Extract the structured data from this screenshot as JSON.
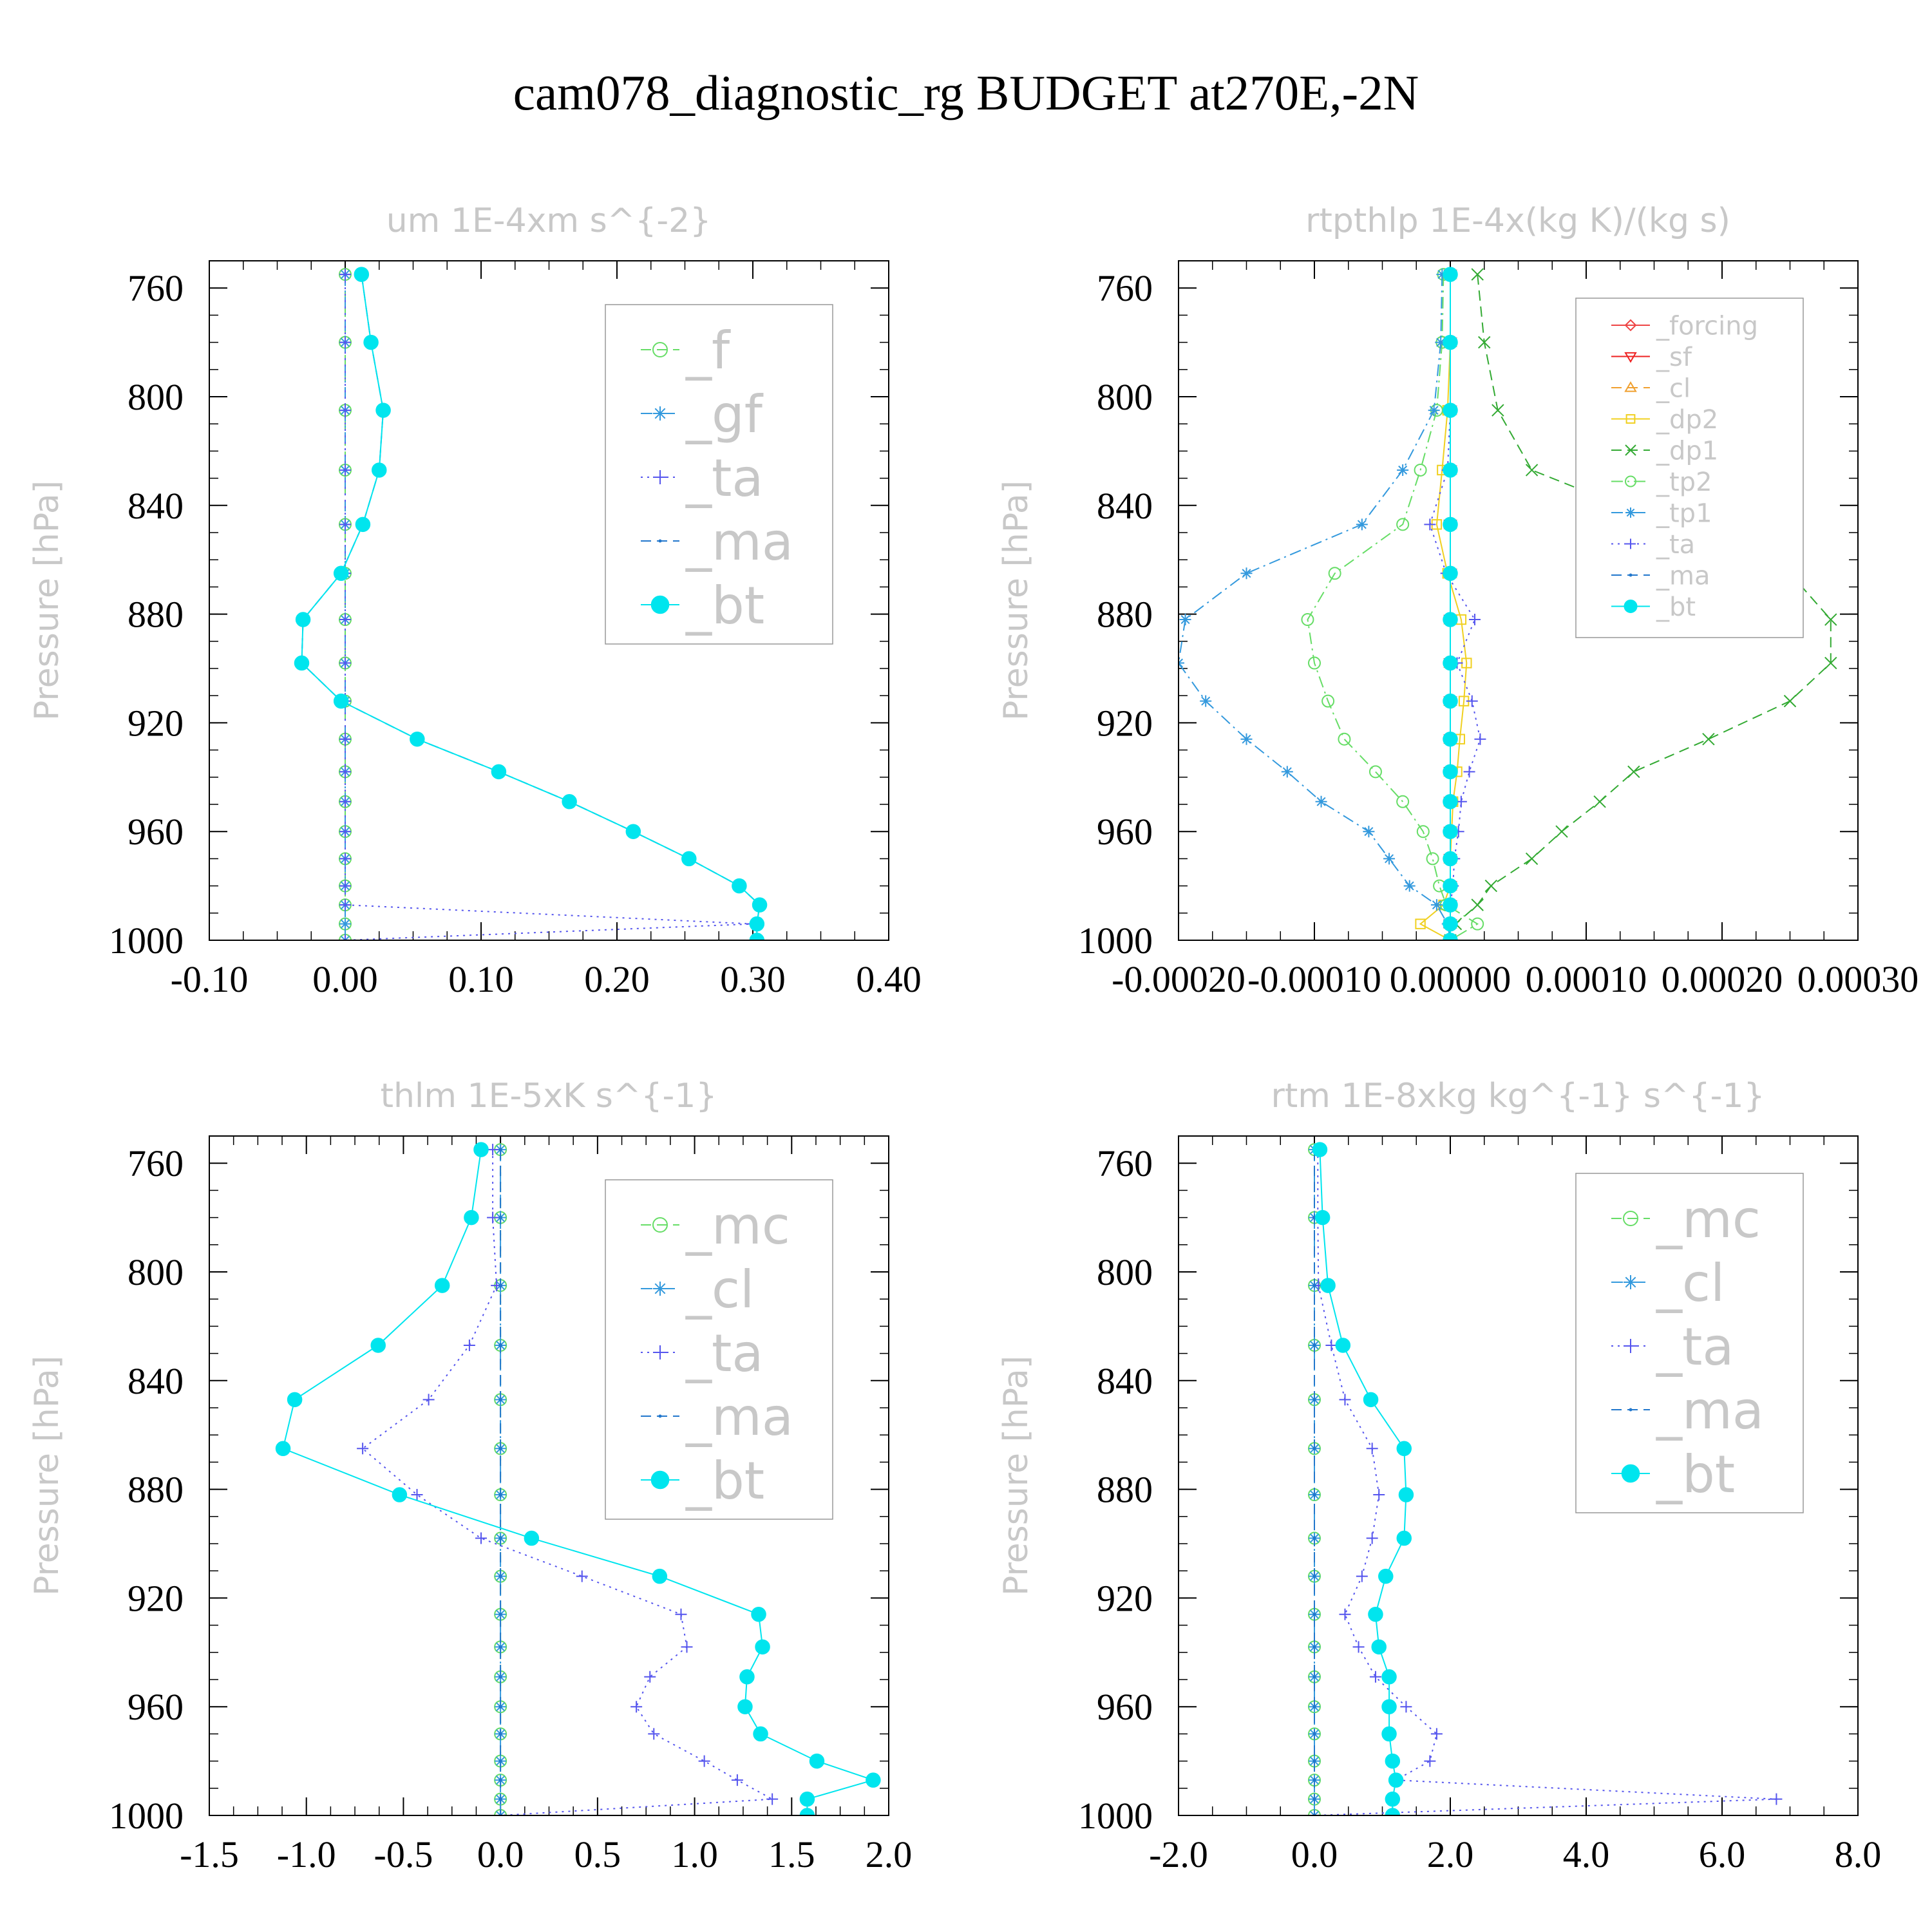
{
  "figure": {
    "title": "cam078_diagnostic_rg  BUDGET at270E,-2N"
  },
  "colors": {
    "f": "#66dd66",
    "gf": "#3399dd",
    "ta": "#5555ee",
    "ma": "#2277cc",
    "bt": "#00e5ee",
    "forcing": "#ee4444",
    "sf": "#ee2222",
    "cl_orange": "#f0a030",
    "dp2": "#f0d020",
    "dp1": "#33aa33",
    "tp2": "#66dd66",
    "tp1": "#3399dd",
    "mc": "#66dd66",
    "cl": "#3399dd"
  },
  "chart_data": [
    {
      "type": "line",
      "title": "um  1E-4xm s^{-2}",
      "ylabel": "Pressure [hPa]",
      "xlim": [
        -0.1,
        0.4
      ],
      "ylim": [
        1000,
        750
      ],
      "grid": false,
      "legend_position": "top-right",
      "x_ticks": [
        -0.1,
        0.0,
        0.1,
        0.2,
        0.3,
        0.4
      ],
      "x_tick_labels": [
        "-0.10",
        "0.00",
        "0.10",
        "0.20",
        "0.30",
        "0.40"
      ],
      "y_ticks": [
        760,
        800,
        840,
        880,
        920,
        960,
        1000
      ],
      "y_tick_labels": [
        "760",
        "800",
        "840",
        "880",
        "920",
        "960",
        "1000"
      ],
      "pressure": [
        755,
        780,
        805,
        827,
        847,
        865,
        882,
        898,
        912,
        926,
        938,
        949,
        960,
        970,
        980,
        987,
        994,
        1000
      ],
      "series": [
        {
          "name": "_f",
          "color_key": "f",
          "style": "dash",
          "marker": "circle-open",
          "values": [
            0,
            0,
            0,
            0,
            0,
            0,
            0,
            0,
            0,
            0,
            0,
            0,
            0,
            0,
            0,
            0,
            0,
            0
          ]
        },
        {
          "name": "_gf",
          "color_key": "gf",
          "style": "dashdot",
          "marker": "star",
          "values": [
            0,
            0,
            0,
            0,
            0,
            0,
            0,
            0,
            0,
            0,
            0,
            0,
            0,
            0,
            0,
            0,
            0,
            0
          ]
        },
        {
          "name": "_ta",
          "color_key": "ta",
          "style": "dot",
          "marker": "plus",
          "values": [
            0,
            0,
            0,
            0,
            0,
            0,
            0,
            0,
            0,
            0,
            0,
            0,
            0,
            0,
            0,
            0,
            0.3,
            0
          ]
        },
        {
          "name": "_ma",
          "color_key": "ma",
          "style": "dash",
          "marker": "dot",
          "values": [
            0.012,
            0.019,
            0.028,
            0.025,
            0.013,
            -0.003,
            -0.031,
            -0.032,
            -0.003,
            0.053,
            0.113,
            0.165,
            0.212,
            0.253,
            0.29,
            0.305,
            0.303,
            0.303
          ]
        },
        {
          "name": "_bt",
          "color_key": "bt",
          "style": "solid",
          "marker": "circle-filled",
          "values": [
            0.012,
            0.019,
            0.028,
            0.025,
            0.013,
            -0.003,
            -0.031,
            -0.032,
            -0.003,
            0.053,
            0.113,
            0.165,
            0.212,
            0.253,
            0.29,
            0.305,
            0.303,
            0.303
          ]
        }
      ]
    },
    {
      "type": "line",
      "title": "rtpthlp  1E-4x(kg K)/(kg s)",
      "ylabel": "Pressure [hPa]",
      "xlim": [
        -0.0002,
        0.0003
      ],
      "ylim": [
        1000,
        750
      ],
      "grid": false,
      "legend_position": "top-right",
      "x_ticks": [
        -0.0002,
        -0.0001,
        0.0,
        0.0001,
        0.0002,
        0.0003
      ],
      "x_tick_labels": [
        "-0.00020",
        "-0.00010",
        "0.00000",
        "0.00010",
        "0.00020",
        "0.00030"
      ],
      "y_ticks": [
        760,
        800,
        840,
        880,
        920,
        960,
        1000
      ],
      "y_tick_labels": [
        "760",
        "800",
        "840",
        "880",
        "920",
        "960",
        "1000"
      ],
      "pressure": [
        755,
        780,
        805,
        827,
        847,
        865,
        882,
        898,
        912,
        926,
        938,
        949,
        960,
        970,
        980,
        987,
        994,
        1000
      ],
      "series": [
        {
          "name": "_forcing",
          "color_key": "forcing",
          "style": "solid",
          "marker": "diamond",
          "values": [
            0,
            0,
            0,
            0,
            0,
            0,
            0,
            0,
            0,
            0,
            0,
            0,
            0,
            0,
            0,
            0,
            0,
            0
          ]
        },
        {
          "name": "_sf",
          "color_key": "sf",
          "style": "solid",
          "marker": "triangle-down",
          "values": [
            0,
            0,
            0,
            0,
            0,
            0,
            0,
            0,
            0,
            0,
            0,
            0,
            0,
            0,
            0,
            0,
            0,
            0
          ]
        },
        {
          "name": "_cl",
          "color_key": "cl_orange",
          "style": "dash",
          "marker": "triangle-up",
          "values": [
            0,
            0,
            0,
            0,
            0,
            0,
            0,
            0,
            0,
            0,
            0,
            0,
            0,
            0,
            0,
            0,
            0,
            0
          ]
        },
        {
          "name": "_dp2",
          "color_key": "dp2",
          "style": "solid",
          "marker": "square",
          "values": [
            0,
            0,
            -2e-06,
            -6e-06,
            -1e-05,
            -2e-06,
            8e-06,
            1.2e-05,
            1e-05,
            7e-06,
            5e-06,
            2e-06,
            1e-06,
            0,
            0,
            -5e-06,
            -2.2e-05,
            0
          ]
        },
        {
          "name": "_dp1",
          "color_key": "dp1",
          "style": "dash",
          "marker": "x",
          "values": [
            2e-05,
            2.5e-05,
            3.5e-05,
            6e-05,
            0.00016,
            0.00025,
            0.00028,
            0.00028,
            0.00025,
            0.00019,
            0.000135,
            0.00011,
            8.2e-05,
            6e-05,
            3e-05,
            2e-05,
            4e-06,
            0
          ]
        },
        {
          "name": "_tp2",
          "color_key": "tp2",
          "style": "dashdot",
          "marker": "circle-open",
          "values": [
            -5e-06,
            -6e-06,
            -1e-05,
            -2.2e-05,
            -3.5e-05,
            -8.5e-05,
            -0.000105,
            -0.0001,
            -9e-05,
            -7.8e-05,
            -5.5e-05,
            -3.5e-05,
            -2e-05,
            -1.3e-05,
            -8e-06,
            -3e-06,
            2e-05,
            0
          ]
        },
        {
          "name": "_tp1",
          "color_key": "tp1",
          "style": "dashdot",
          "marker": "star",
          "values": [
            -6e-06,
            -7e-06,
            -1.2e-05,
            -3.5e-05,
            -6.5e-05,
            -0.00015,
            -0.000195,
            -0.0002,
            -0.00018,
            -0.00015,
            -0.00012,
            -9.5e-05,
            -6e-05,
            -4.5e-05,
            -3e-05,
            -1e-05,
            -2e-06,
            0
          ]
        },
        {
          "name": "_ta",
          "color_key": "ta",
          "style": "dot",
          "marker": "plus",
          "values": [
            0,
            0,
            0,
            -2e-06,
            -1.5e-05,
            -3e-06,
            1.8e-05,
            5e-06,
            1.6e-05,
            2.2e-05,
            1.4e-05,
            8e-06,
            6e-06,
            3e-06,
            2e-06,
            0,
            0,
            0
          ]
        },
        {
          "name": "_ma",
          "color_key": "ma",
          "style": "dash",
          "marker": "dot",
          "values": [
            0,
            0,
            0,
            0,
            0,
            0,
            0,
            0,
            0,
            0,
            0,
            0,
            0,
            0,
            0,
            0,
            0,
            0
          ]
        },
        {
          "name": "_bt",
          "color_key": "bt",
          "style": "solid",
          "marker": "circle-filled",
          "values": [
            0,
            0,
            0,
            0,
            0,
            0,
            0,
            0,
            0,
            0,
            0,
            0,
            0,
            0,
            0,
            0,
            0,
            0
          ]
        }
      ]
    },
    {
      "type": "line",
      "title": "thlm  1E-5xK s^{-1}",
      "ylabel": "Pressure [hPa]",
      "xlim": [
        -1.5,
        2.0
      ],
      "ylim": [
        1000,
        750
      ],
      "grid": false,
      "legend_position": "top-right",
      "x_ticks": [
        -1.5,
        -1.0,
        -0.5,
        0.0,
        0.5,
        1.0,
        1.5,
        2.0
      ],
      "x_tick_labels": [
        "-1.5",
        "-1.0",
        "-0.5",
        "0.0",
        "0.5",
        "1.0",
        "1.5",
        "2.0"
      ],
      "y_ticks": [
        760,
        800,
        840,
        880,
        920,
        960,
        1000
      ],
      "y_tick_labels": [
        "760",
        "800",
        "840",
        "880",
        "920",
        "960",
        "1000"
      ],
      "pressure": [
        755,
        780,
        805,
        827,
        847,
        865,
        882,
        898,
        912,
        926,
        938,
        949,
        960,
        970,
        980,
        987,
        994,
        1000
      ],
      "series": [
        {
          "name": "_mc",
          "color_key": "mc",
          "style": "dash",
          "marker": "circle-open",
          "values": [
            0,
            0,
            0,
            0,
            0,
            0,
            0,
            0,
            0,
            0,
            0,
            0,
            0,
            0,
            0,
            0,
            0,
            0
          ]
        },
        {
          "name": "_cl",
          "color_key": "cl",
          "style": "dashdot",
          "marker": "star",
          "values": [
            0,
            0,
            0,
            0,
            0,
            0,
            0,
            0,
            0,
            0,
            0,
            0,
            0,
            0,
            0,
            0,
            0,
            0
          ]
        },
        {
          "name": "_ta",
          "color_key": "ta",
          "style": "dot",
          "marker": "plus",
          "values": [
            -0.04,
            -0.04,
            -0.02,
            -0.16,
            -0.37,
            -0.71,
            -0.43,
            -0.1,
            0.42,
            0.93,
            0.96,
            0.77,
            0.7,
            0.79,
            1.05,
            1.22,
            1.4,
            0
          ]
        },
        {
          "name": "_ma",
          "color_key": "ma",
          "style": "dash",
          "marker": "dot",
          "values": [
            0,
            0,
            0,
            0,
            0,
            0,
            0,
            0,
            0,
            0,
            0,
            0,
            0,
            0,
            0,
            0,
            0,
            0
          ]
        },
        {
          "name": "_bt",
          "color_key": "bt",
          "style": "solid",
          "marker": "circle-filled",
          "values": [
            -0.1,
            -0.15,
            -0.3,
            -0.63,
            -1.06,
            -1.12,
            -0.52,
            0.16,
            0.82,
            1.33,
            1.35,
            1.27,
            1.26,
            1.34,
            1.63,
            1.92,
            1.58,
            1.58
          ]
        }
      ]
    },
    {
      "type": "line",
      "title": "rtm  1E-8xkg kg^{-1} s^{-1}",
      "ylabel": "Pressure [hPa]",
      "xlim": [
        -2.0,
        8.0
      ],
      "ylim": [
        1000,
        750
      ],
      "grid": false,
      "legend_position": "top-right",
      "x_ticks": [
        -2.0,
        0.0,
        2.0,
        4.0,
        6.0,
        8.0
      ],
      "x_tick_labels": [
        "-2.0",
        "0.0",
        "2.0",
        "4.0",
        "6.0",
        "8.0"
      ],
      "y_ticks": [
        760,
        800,
        840,
        880,
        920,
        960,
        1000
      ],
      "y_tick_labels": [
        "760",
        "800",
        "840",
        "880",
        "920",
        "960",
        "1000"
      ],
      "pressure": [
        755,
        780,
        805,
        827,
        847,
        865,
        882,
        898,
        912,
        926,
        938,
        949,
        960,
        970,
        980,
        987,
        994,
        1000
      ],
      "series": [
        {
          "name": "_mc",
          "color_key": "mc",
          "style": "dash",
          "marker": "circle-open",
          "values": [
            0,
            0,
            0,
            0,
            0,
            0,
            0,
            0,
            0,
            0,
            0,
            0,
            0,
            0,
            0,
            0,
            0,
            0
          ]
        },
        {
          "name": "_cl",
          "color_key": "cl",
          "style": "dashdot",
          "marker": "star",
          "values": [
            0,
            0,
            0,
            0,
            0,
            0,
            0,
            0,
            0,
            0,
            0,
            0,
            0,
            0,
            0,
            0,
            0,
            0
          ]
        },
        {
          "name": "_ta",
          "color_key": "ta",
          "style": "dot",
          "marker": "plus",
          "values": [
            0.05,
            0.05,
            0.06,
            0.25,
            0.45,
            0.85,
            0.95,
            0.85,
            0.7,
            0.45,
            0.65,
            0.9,
            1.35,
            1.8,
            1.7,
            1.2,
            6.8,
            0
          ]
        },
        {
          "name": "_ma",
          "color_key": "ma",
          "style": "dash",
          "marker": "dot",
          "values": [
            0,
            0,
            0,
            0,
            0,
            0,
            0,
            0,
            0,
            0,
            0,
            0,
            0,
            0,
            0,
            0,
            0,
            0
          ]
        },
        {
          "name": "_bt",
          "color_key": "bt",
          "style": "solid",
          "marker": "circle-filled",
          "values": [
            0.08,
            0.12,
            0.2,
            0.42,
            0.83,
            1.32,
            1.35,
            1.32,
            1.05,
            0.9,
            0.95,
            1.1,
            1.1,
            1.1,
            1.15,
            1.2,
            1.15,
            1.15
          ]
        }
      ]
    }
  ]
}
